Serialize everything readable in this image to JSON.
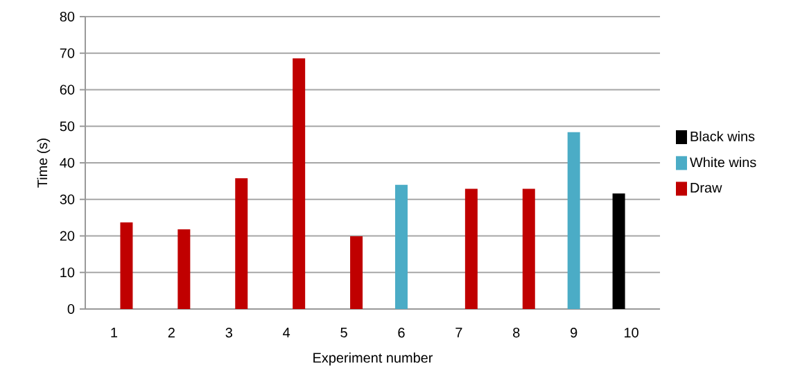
{
  "chart_data": {
    "type": "bar",
    "xlabel": "Experiment number",
    "ylabel": "Time (s)",
    "categories": [
      "1",
      "2",
      "3",
      "4",
      "5",
      "6",
      "7",
      "8",
      "9",
      "10"
    ],
    "series": [
      {
        "name": "Black wins",
        "color": "#000000",
        "values": [
          null,
          null,
          null,
          null,
          null,
          null,
          null,
          null,
          null,
          31.6
        ]
      },
      {
        "name": "White wins",
        "color": "#4bacc6",
        "values": [
          null,
          null,
          null,
          null,
          null,
          34.0,
          null,
          null,
          48.4,
          null
        ]
      },
      {
        "name": "Draw",
        "color": "#c00000",
        "values": [
          23.7,
          21.8,
          35.8,
          68.6,
          19.9,
          null,
          32.9,
          32.9,
          null,
          null
        ]
      }
    ],
    "ylim": [
      0,
      80
    ],
    "yticks": [
      0,
      10,
      20,
      30,
      40,
      50,
      60,
      70,
      80
    ],
    "grid": "y",
    "legend": "right"
  }
}
